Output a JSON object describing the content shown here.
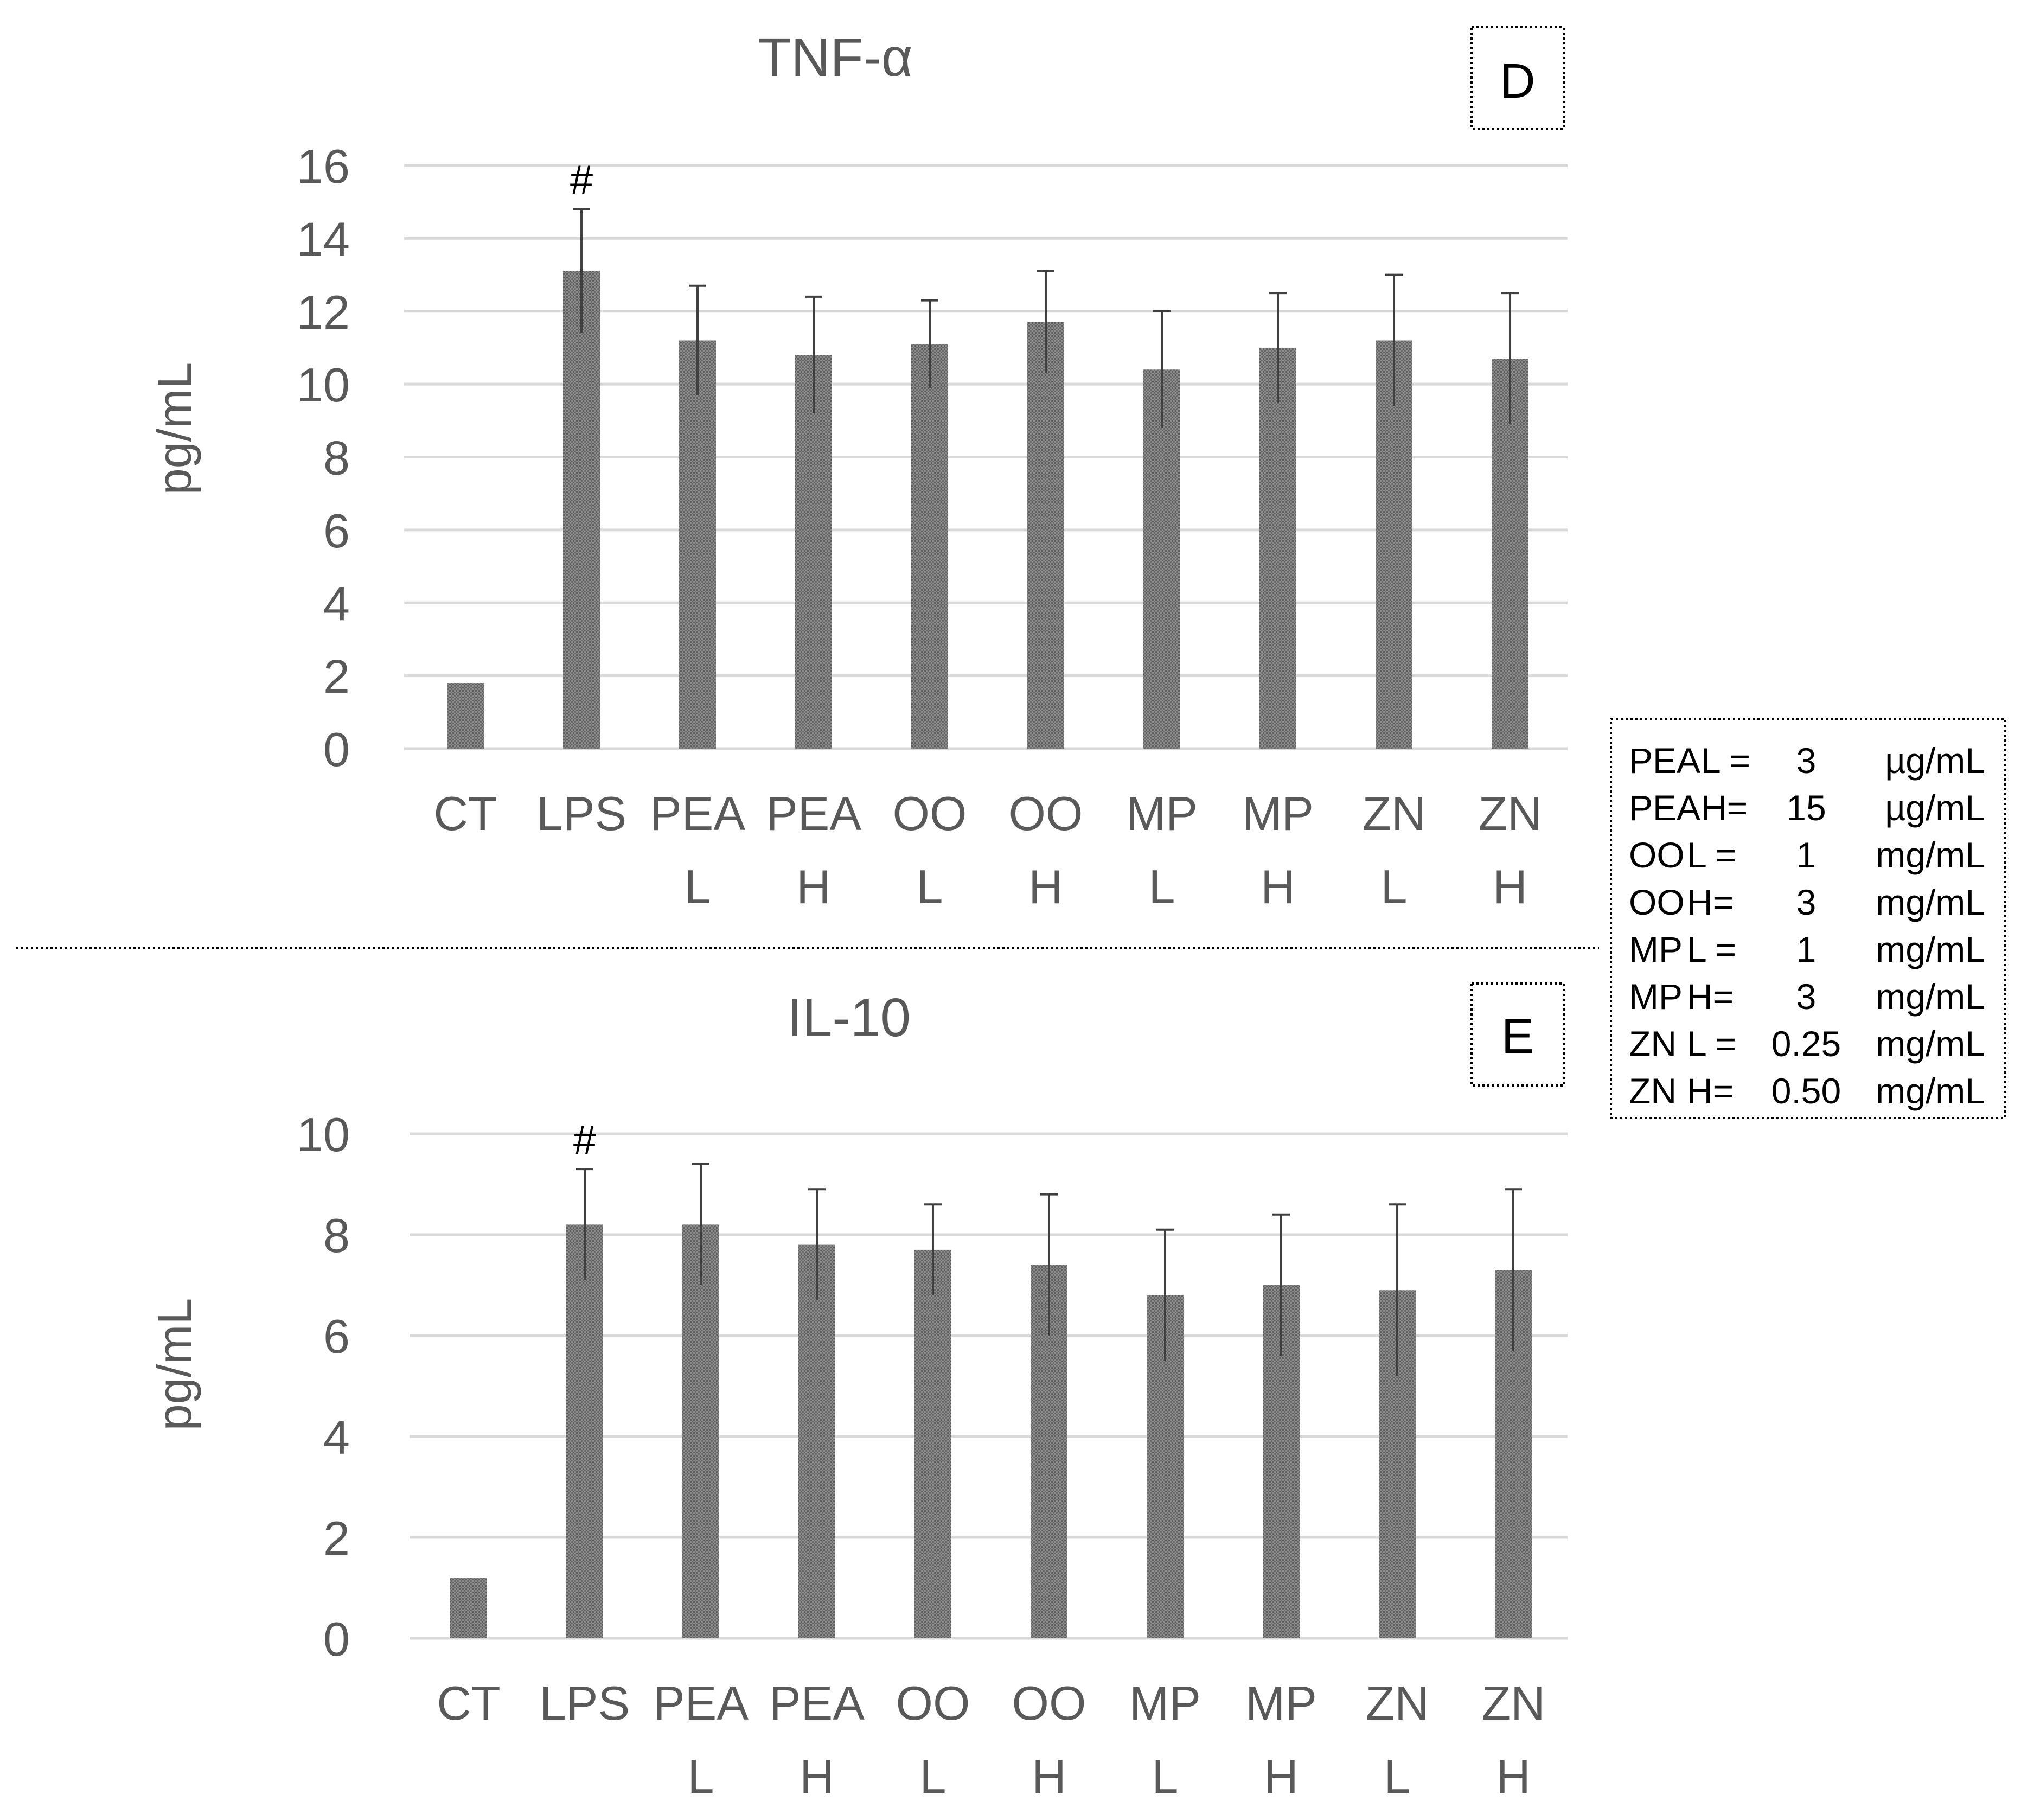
{
  "legend": {
    "lines": [
      {
        "code": "PEA",
        "level": "L =",
        "amount": "3",
        "unit": "µg/mL"
      },
      {
        "code": "PEA",
        "level": "H=",
        "amount": "15",
        "unit": "µg/mL"
      },
      {
        "code": "OO",
        "level": "L =",
        "amount": "1",
        "unit": "mg/mL"
      },
      {
        "code": "OO",
        "level": "H=",
        "amount": "3",
        "unit": "mg/mL"
      },
      {
        "code": "MP",
        "level": "L =",
        "amount": "1",
        "unit": "mg/mL"
      },
      {
        "code": "MP",
        "level": "H=",
        "amount": "3",
        "unit": "mg/mL"
      },
      {
        "code": "ZN",
        "level": "L =",
        "amount": "0.25",
        "unit": "mg/mL"
      },
      {
        "code": "ZN",
        "level": "H=",
        "amount": "0.50",
        "unit": "mg/mL"
      }
    ]
  },
  "colors": {
    "bar": "#7a7a7a",
    "grid": "#d9d9d9",
    "text": "#595959",
    "error": "#404040"
  },
  "chart_data": [
    {
      "type": "bar",
      "panel": "D",
      "title": "TNF-α",
      "ylabel": "pg/mL",
      "xlabel": "",
      "ylim": [
        0,
        16
      ],
      "yticks": [
        0,
        2,
        4,
        6,
        8,
        10,
        12,
        14,
        16
      ],
      "grid": true,
      "categories": [
        [
          "CT"
        ],
        [
          "LPS"
        ],
        [
          "PEA",
          "L"
        ],
        [
          "PEA",
          "H"
        ],
        [
          "OO",
          "L"
        ],
        [
          "OO",
          "H"
        ],
        [
          "MP",
          "L"
        ],
        [
          "MP",
          "H"
        ],
        [
          "ZN",
          "L"
        ],
        [
          "ZN",
          "H"
        ]
      ],
      "values": [
        1.8,
        13.1,
        11.2,
        10.8,
        11.1,
        11.7,
        10.4,
        11.0,
        11.2,
        10.7
      ],
      "error_upper": [
        0,
        1.7,
        1.5,
        1.6,
        1.2,
        1.4,
        1.6,
        1.5,
        1.8,
        1.8
      ],
      "annotations": [
        {
          "category_index": 1,
          "text": "#"
        }
      ]
    },
    {
      "type": "bar",
      "panel": "E",
      "title": "IL-10",
      "ylabel": "pg/mL",
      "xlabel": "",
      "ylim": [
        0,
        10
      ],
      "yticks": [
        0,
        2,
        4,
        6,
        8,
        10
      ],
      "grid": true,
      "categories": [
        [
          "CT"
        ],
        [
          "LPS"
        ],
        [
          "PEA",
          "L"
        ],
        [
          "PEA",
          "H"
        ],
        [
          "OO",
          "L"
        ],
        [
          "OO",
          "H"
        ],
        [
          "MP",
          "L"
        ],
        [
          "MP",
          "H"
        ],
        [
          "ZN",
          "L"
        ],
        [
          "ZN",
          "H"
        ]
      ],
      "values": [
        1.2,
        8.2,
        8.2,
        7.8,
        7.7,
        7.4,
        6.8,
        7.0,
        6.9,
        7.3
      ],
      "error_upper": [
        0,
        1.1,
        1.2,
        1.1,
        0.9,
        1.4,
        1.3,
        1.4,
        1.7,
        1.6
      ],
      "annotations": [
        {
          "category_index": 1,
          "text": "#"
        }
      ]
    }
  ]
}
